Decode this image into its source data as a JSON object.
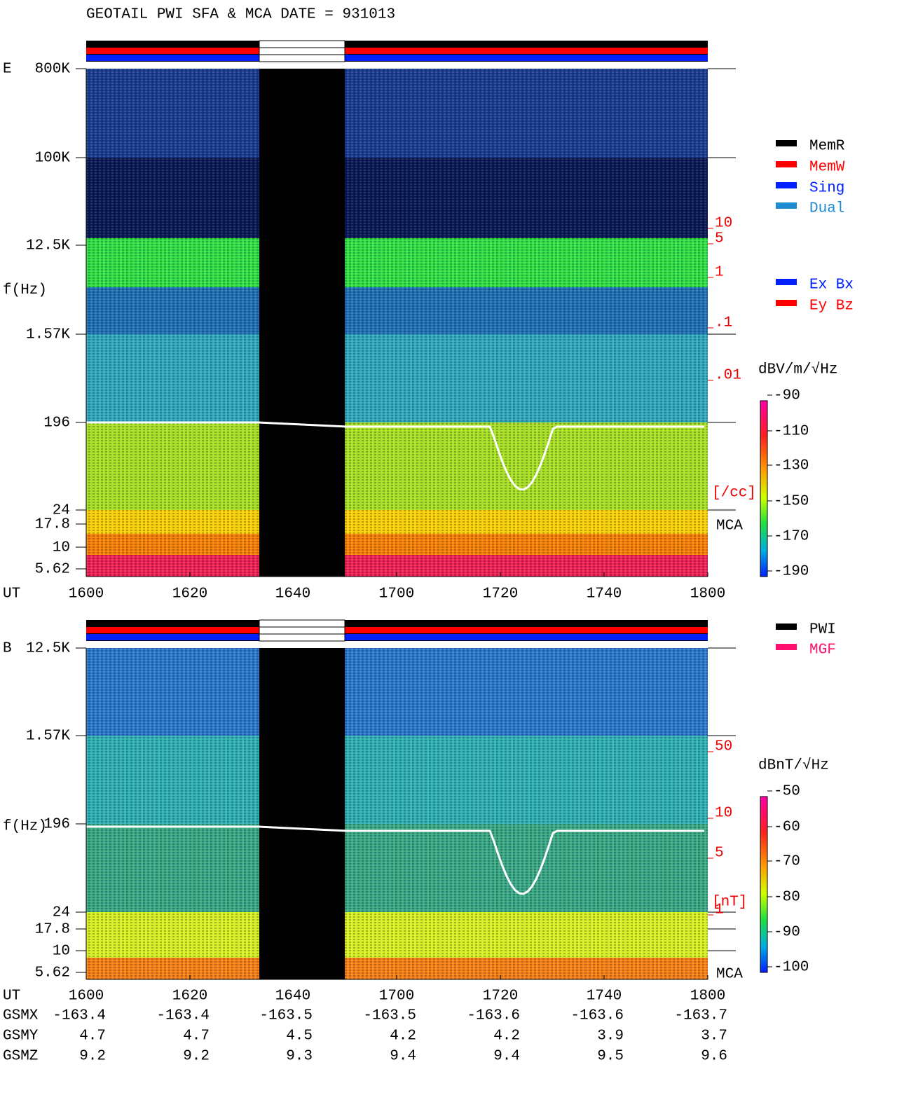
{
  "title": "GEOTAIL  PWI SFA & MCA   DATE = 931013",
  "panel_e": {
    "label": "E",
    "ylabel": "f(Hz)",
    "freq_ticks": [
      "800K",
      "100K",
      "12.5K",
      "1.57K",
      "196",
      "24",
      "17.8",
      "10",
      "5.62"
    ],
    "density_ticks": [
      "10",
      "5",
      "1",
      ".1",
      ".01"
    ],
    "density_unit": "[/cc]",
    "mca": "MCA",
    "colorbar_unit": "dBV/m/√Hz",
    "colorbar_ticks": [
      "-90",
      "-110",
      "-130",
      "-150",
      "-170",
      "-190"
    ],
    "time_label": "UT",
    "time_ticks": [
      "1600",
      "1620",
      "1640",
      "1700",
      "1720",
      "1740",
      "1800"
    ]
  },
  "legend_mode": [
    "MemR",
    "MemW",
    "Sing",
    "Dual"
  ],
  "legend_comp": [
    "Ex Bx",
    "Ey Bz"
  ],
  "panel_b": {
    "label": "B",
    "ylabel": "f(Hz)",
    "freq_ticks": [
      "12.5K",
      "1.57K",
      "196",
      "24",
      "17.8",
      "10",
      "5.62"
    ],
    "density_ticks": [
      "50",
      "10",
      "5",
      "1"
    ],
    "density_unit": "[nT]",
    "mca": "MCA",
    "colorbar_unit": "dBnT/√Hz",
    "colorbar_ticks": [
      "-50",
      "-60",
      "-70",
      "-80",
      "-90",
      "-100"
    ],
    "time_label": "UT",
    "time_ticks": [
      "1600",
      "1620",
      "1640",
      "1700",
      "1720",
      "1740",
      "1800"
    ]
  },
  "legend_inst": [
    "PWI",
    "MGF"
  ],
  "ephemeris": [
    {
      "label": "GSMX",
      "values": [
        "-163.4",
        "-163.4",
        "-163.5",
        "-163.5",
        "-163.6",
        "-163.6",
        "-163.7"
      ]
    },
    {
      "label": "GSMY",
      "values": [
        "4.7",
        "4.7",
        "4.5",
        "4.2",
        "4.2",
        "3.9",
        "3.7"
      ]
    },
    {
      "label": "GSMZ",
      "values": [
        "9.2",
        "9.2",
        "9.3",
        "9.4",
        "9.4",
        "9.5",
        "9.6"
      ]
    }
  ]
}
